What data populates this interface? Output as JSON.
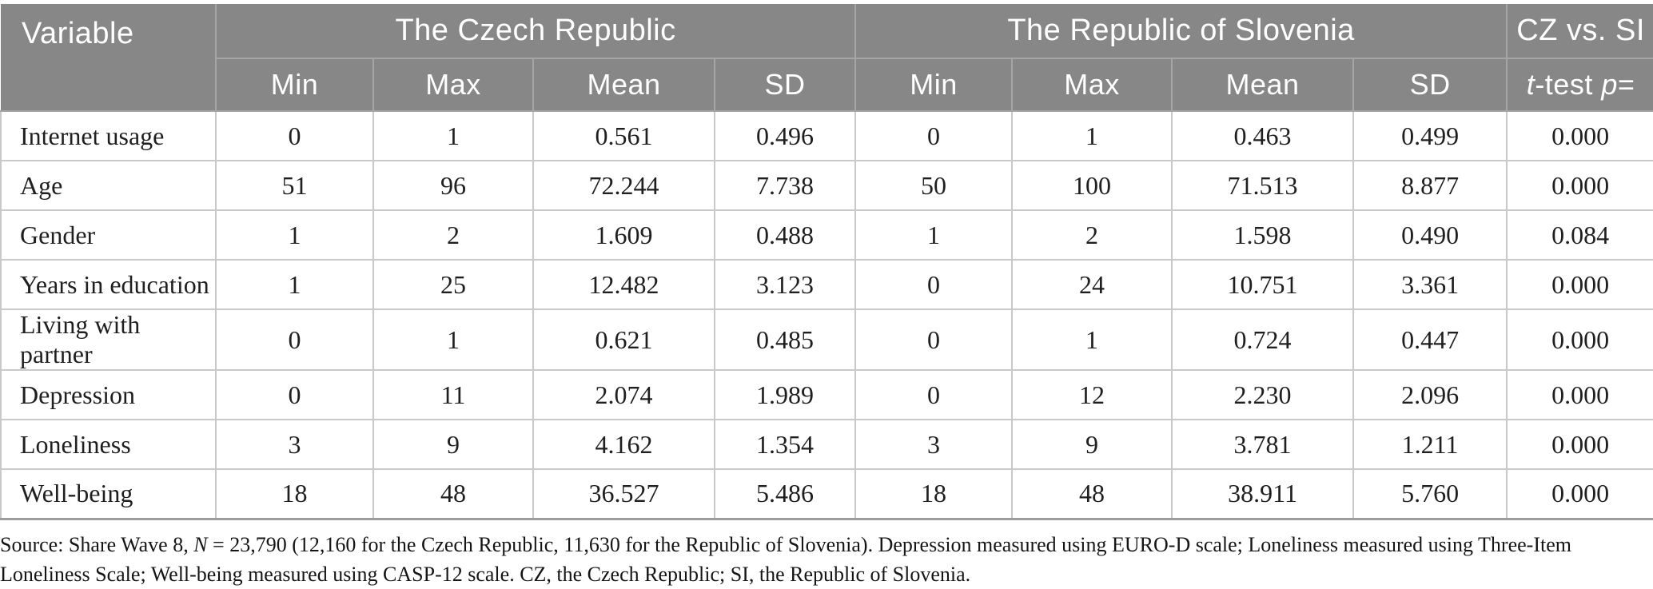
{
  "table": {
    "title_column": "Variable",
    "groups": {
      "cz": "The Czech Republic",
      "si": "The Republic of Slovenia",
      "compare": "CZ vs. SI"
    },
    "sub_headers": [
      "Min",
      "Max",
      "Mean",
      "SD"
    ],
    "ttest_header": [
      {
        "text": "t",
        "italic": true
      },
      {
        "text": "-test ",
        "italic": false
      },
      {
        "text": "p",
        "italic": true
      },
      {
        "text": "=",
        "italic": false
      }
    ],
    "rows": [
      {
        "variable": "Internet usage",
        "cz": {
          "min": "0",
          "max": "1",
          "mean": "0.561",
          "sd": "0.496"
        },
        "si": {
          "min": "0",
          "max": "1",
          "mean": "0.463",
          "sd": "0.499"
        },
        "p": "0.000"
      },
      {
        "variable": "Age",
        "cz": {
          "min": "51",
          "max": "96",
          "mean": "72.244",
          "sd": "7.738"
        },
        "si": {
          "min": "50",
          "max": "100",
          "mean": "71.513",
          "sd": "8.877"
        },
        "p": "0.000"
      },
      {
        "variable": "Gender",
        "cz": {
          "min": "1",
          "max": "2",
          "mean": "1.609",
          "sd": "0.488"
        },
        "si": {
          "min": "1",
          "max": "2",
          "mean": "1.598",
          "sd": "0.490"
        },
        "p": "0.084"
      },
      {
        "variable": "Years in education",
        "cz": {
          "min": "1",
          "max": "25",
          "mean": "12.482",
          "sd": "3.123"
        },
        "si": {
          "min": "0",
          "max": "24",
          "mean": "10.751",
          "sd": "3.361"
        },
        "p": "0.000"
      },
      {
        "variable": "Living with partner",
        "cz": {
          "min": "0",
          "max": "1",
          "mean": "0.621",
          "sd": "0.485"
        },
        "si": {
          "min": "0",
          "max": "1",
          "mean": "0.724",
          "sd": "0.447"
        },
        "p": "0.000"
      },
      {
        "variable": "Depression",
        "cz": {
          "min": "0",
          "max": "11",
          "mean": "2.074",
          "sd": "1.989"
        },
        "si": {
          "min": "0",
          "max": "12",
          "mean": "2.230",
          "sd": "2.096"
        },
        "p": "0.000"
      },
      {
        "variable": "Loneliness",
        "cz": {
          "min": "3",
          "max": "9",
          "mean": "4.162",
          "sd": "1.354"
        },
        "si": {
          "min": "3",
          "max": "9",
          "mean": "3.781",
          "sd": "1.211"
        },
        "p": "0.000"
      },
      {
        "variable": "Well-being",
        "cz": {
          "min": "18",
          "max": "48",
          "mean": "36.527",
          "sd": "5.486"
        },
        "si": {
          "min": "18",
          "max": "48",
          "mean": "38.911",
          "sd": "5.760"
        },
        "p": "0.000"
      }
    ]
  },
  "footnote": {
    "segments": [
      {
        "text": "Source: Share Wave 8, ",
        "italic": false
      },
      {
        "text": "N",
        "italic": true
      },
      {
        "text": " = 23,790 (12,160 for the Czech Republic, 11,630 for the Republic of Slovenia). Depression measured using EURO-D scale; Loneliness measured using Three-Item Loneliness Scale; Well-being measured using CASP-12 scale. CZ, the Czech Republic; SI, the Republic of Slovenia.",
        "italic": false
      }
    ]
  },
  "colors": {
    "header_bg": "#878787",
    "header_text": "#ffffff",
    "header_border": "#a5a5a5",
    "body_border": "#c9c9c9",
    "bottom_border": "#9c9c9c",
    "body_text": "#1f1f1f"
  }
}
